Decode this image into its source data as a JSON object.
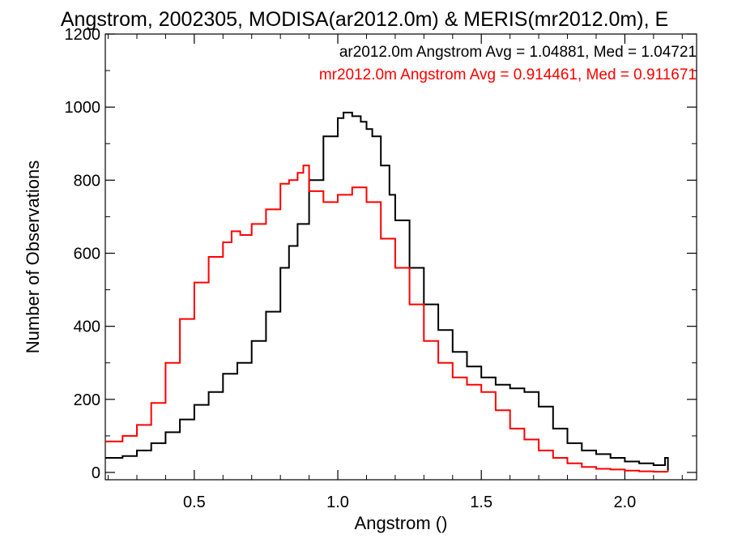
{
  "chart_data": {
    "type": "line",
    "title": "Angstrom, 2002305, MODISA(ar2012.0m) & MERIS(mr2012.0m), E",
    "xlabel": "Angstrom ()",
    "ylabel": "Number of Observations",
    "xlim": [
      0.19,
      2.25
    ],
    "ylim": [
      -20,
      1200
    ],
    "x_ticks": [
      0.5,
      1.0,
      1.5,
      2.0
    ],
    "x_tick_labels": [
      "0.5",
      "1.0",
      "1.5",
      "2.0"
    ],
    "y_ticks": [
      0,
      200,
      400,
      600,
      800,
      1000,
      1200
    ],
    "y_tick_labels": [
      "0",
      "200",
      "400",
      "600",
      "800",
      "1000",
      "1200"
    ],
    "grid": false,
    "legend_placement": "top-right",
    "legend": [
      "ar2012.0m Angstrom Avg = 1.04881, Med = 1.04721",
      "mr2012.0m Angstrom Avg = 0.914461, Med = 0.911671"
    ],
    "series": [
      {
        "color": "#000000",
        "style": "step",
        "x": [
          0.19,
          0.25,
          0.3,
          0.35,
          0.4,
          0.45,
          0.5,
          0.55,
          0.6,
          0.65,
          0.7,
          0.75,
          0.8,
          0.83,
          0.86,
          0.9,
          0.95,
          1.0,
          1.02,
          1.05,
          1.08,
          1.1,
          1.12,
          1.15,
          1.18,
          1.2,
          1.25,
          1.3,
          1.35,
          1.4,
          1.45,
          1.5,
          1.55,
          1.6,
          1.65,
          1.7,
          1.75,
          1.8,
          1.85,
          1.9,
          1.95,
          2.0,
          2.05,
          2.1,
          2.14,
          2.15
        ],
        "y": [
          40,
          45,
          60,
          80,
          110,
          145,
          185,
          220,
          270,
          300,
          360,
          440,
          560,
          620,
          680,
          800,
          920,
          970,
          985,
          975,
          960,
          940,
          920,
          840,
          760,
          690,
          560,
          460,
          390,
          330,
          290,
          260,
          240,
          230,
          220,
          180,
          120,
          80,
          60,
          50,
          40,
          30,
          25,
          20,
          40,
          5
        ]
      },
      {
        "color": "#ff0000",
        "style": "step",
        "x": [
          0.19,
          0.25,
          0.3,
          0.35,
          0.4,
          0.45,
          0.5,
          0.55,
          0.6,
          0.63,
          0.66,
          0.7,
          0.75,
          0.8,
          0.83,
          0.86,
          0.88,
          0.9,
          0.95,
          1.0,
          1.05,
          1.1,
          1.15,
          1.2,
          1.25,
          1.3,
          1.35,
          1.4,
          1.45,
          1.5,
          1.55,
          1.6,
          1.65,
          1.7,
          1.75,
          1.8,
          1.85,
          1.9,
          1.95,
          2.0,
          2.05,
          2.1,
          2.15
        ],
        "y": [
          85,
          100,
          130,
          190,
          300,
          420,
          520,
          590,
          630,
          660,
          650,
          680,
          720,
          790,
          800,
          820,
          840,
          770,
          740,
          760,
          780,
          740,
          640,
          560,
          460,
          360,
          300,
          260,
          240,
          220,
          170,
          120,
          90,
          60,
          40,
          25,
          15,
          10,
          8,
          5,
          3,
          2,
          1
        ]
      }
    ]
  }
}
